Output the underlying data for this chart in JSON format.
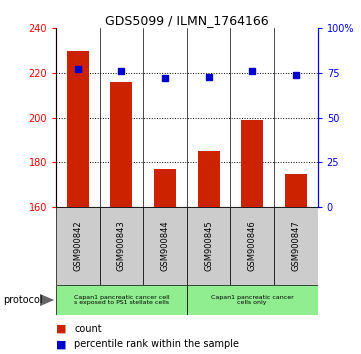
{
  "title": "GDS5099 / ILMN_1764166",
  "samples": [
    "GSM900842",
    "GSM900843",
    "GSM900844",
    "GSM900845",
    "GSM900846",
    "GSM900847"
  ],
  "counts": [
    230,
    216,
    177,
    185,
    199,
    175
  ],
  "percentiles": [
    77,
    76,
    72,
    73,
    76,
    74
  ],
  "ylim_left": [
    160,
    240
  ],
  "ylim_right": [
    0,
    100
  ],
  "yticks_left": [
    160,
    180,
    200,
    220,
    240
  ],
  "yticks_right": [
    0,
    25,
    50,
    75,
    100
  ],
  "ytick_labels_right": [
    "0",
    "25",
    "50",
    "75",
    "100%"
  ],
  "bar_color": "#cc2200",
  "dot_color": "#0000cc",
  "protocol_groups": [
    {
      "label": "Capan1 pancreatic cancer cell\ns exposed to PS1 stellate cells",
      "start": 0,
      "end": 3,
      "color": "#90ee90"
    },
    {
      "label": "Capan1 pancreatic cancer\ncells only",
      "start": 3,
      "end": 6,
      "color": "#90ee90"
    }
  ],
  "protocol_label": "protocol",
  "legend_count_label": "count",
  "legend_percentile_label": "percentile rank within the sample",
  "bar_bottom": 160,
  "sample_box_color": "#cccccc",
  "grid_yticks": [
    180,
    200,
    220
  ]
}
